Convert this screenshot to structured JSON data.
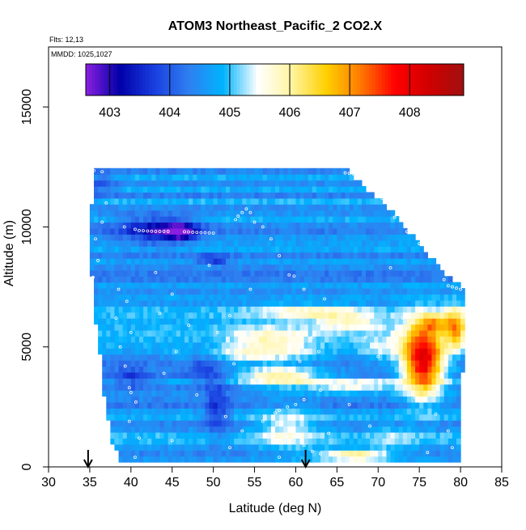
{
  "chart_data": {
    "type": "heatmap",
    "title": "ATOM3 Northeast_Pacific_2 CO2.X",
    "annotations": [
      "Flts: 12,13",
      "MMDD: 1025,1027"
    ],
    "xlabel": "Latitude (deg N)",
    "ylabel": "Altitude (m)",
    "xlim": [
      30,
      85
    ],
    "ylim": [
      0,
      17500
    ],
    "x_ticks": [
      30,
      35,
      40,
      45,
      50,
      55,
      60,
      65,
      70,
      75,
      80,
      85
    ],
    "y_ticks": [
      0,
      5000,
      10000,
      15000
    ],
    "grid": false,
    "legend": "colorbar-top",
    "colorbar": {
      "min": 402.6,
      "max": 408.9,
      "ticks": [
        403,
        404,
        405,
        406,
        407,
        408
      ],
      "colors": [
        "#8b1fe0",
        "#0000a8",
        "#1a3fe0",
        "#2f7ff0",
        "#00b4ff",
        "#ffffff",
        "#fff4a0",
        "#ffd000",
        "#ff7a00",
        "#ff0000",
        "#d00000",
        "#a01010"
      ]
    },
    "domain_envelope": {
      "lat_left": [
        [
          200,
          39
        ],
        [
          1000,
          38
        ],
        [
          2000,
          37.5
        ],
        [
          3000,
          37
        ],
        [
          4000,
          36.7
        ],
        [
          5000,
          36.4
        ],
        [
          6000,
          36
        ],
        [
          7000,
          35.7
        ],
        [
          8000,
          35.5
        ],
        [
          9000,
          35.2
        ],
        [
          10000,
          35.3
        ],
        [
          11000,
          35.5
        ],
        [
          12000,
          35.6
        ],
        [
          12400,
          35.7
        ]
      ],
      "lat_right": [
        [
          200,
          79.5
        ],
        [
          1000,
          79.6
        ],
        [
          2000,
          79.7
        ],
        [
          3000,
          79.8
        ],
        [
          4000,
          80
        ],
        [
          5000,
          80.1
        ],
        [
          6000,
          80.2
        ],
        [
          7000,
          80.2
        ],
        [
          7500,
          80
        ],
        [
          8000,
          78
        ],
        [
          9000,
          75.5
        ],
        [
          10000,
          73
        ],
        [
          11000,
          70.5
        ],
        [
          12000,
          67
        ],
        [
          12400,
          66
        ]
      ],
      "alt_min": 200,
      "alt_max": 12400
    },
    "background_value": 404.6,
    "anomalies": [
      {
        "lat": 43.5,
        "alt": 9900,
        "dlat": 4.5,
        "dalt": 550,
        "value": 403.2
      },
      {
        "lat": 46,
        "alt": 9800,
        "dlat": 1.8,
        "dalt": 300,
        "value": 402.9
      },
      {
        "lat": 50,
        "alt": 8650,
        "dlat": 2,
        "dalt": 200,
        "value": 403.6
      },
      {
        "lat": 62,
        "alt": 6450,
        "dlat": 7,
        "dalt": 300,
        "value": 405.7
      },
      {
        "lat": 66.5,
        "alt": 6000,
        "dlat": 4,
        "dalt": 350,
        "value": 405.6
      },
      {
        "lat": 57,
        "alt": 5400,
        "dlat": 5,
        "dalt": 500,
        "value": 405.7
      },
      {
        "lat": 75.5,
        "alt": 4500,
        "dlat": 2.5,
        "dalt": 1500,
        "value": 408.2
      },
      {
        "lat": 79.5,
        "alt": 5800,
        "dlat": 1.3,
        "dalt": 900,
        "value": 406.6
      },
      {
        "lat": 77,
        "alt": 6000,
        "dlat": 2,
        "dalt": 350,
        "value": 406.1
      },
      {
        "lat": 55,
        "alt": 4700,
        "dlat": 8,
        "dalt": 350,
        "value": 405.6
      },
      {
        "lat": 58,
        "alt": 3800,
        "dlat": 5,
        "dalt": 400,
        "value": 406.2
      },
      {
        "lat": 67,
        "alt": 3400,
        "dlat": 6,
        "dalt": 300,
        "value": 405.7
      },
      {
        "lat": 59,
        "alt": 1600,
        "dlat": 4,
        "dalt": 900,
        "value": 405.5
      },
      {
        "lat": 67,
        "alt": 500,
        "dlat": 4.5,
        "dalt": 250,
        "value": 406.2
      },
      {
        "lat": 50.5,
        "alt": 2500,
        "dlat": 1.5,
        "dalt": 1300,
        "value": 403.8
      },
      {
        "lat": 49,
        "alt": 4300,
        "dlat": 2,
        "dalt": 700,
        "value": 403.9
      },
      {
        "lat": 40,
        "alt": 3800,
        "dlat": 2,
        "dalt": 500,
        "value": 403.9
      },
      {
        "lat": 36,
        "alt": 11800,
        "dlat": 2,
        "dalt": 500,
        "value": 404.1
      },
      {
        "lat": 70.5,
        "alt": 5000,
        "dlat": 3,
        "dalt": 600,
        "value": 405.3
      },
      {
        "lat": 72,
        "alt": 1200,
        "dlat": 3,
        "dalt": 500,
        "value": 405.2
      }
    ],
    "sample_points": [
      [
        35.5,
        12350
      ],
      [
        36.5,
        12300
      ],
      [
        37,
        11000
      ],
      [
        36.5,
        10200
      ],
      [
        35.7,
        9500
      ],
      [
        36,
        8600
      ],
      [
        35.4,
        7900
      ],
      [
        38.5,
        7400
      ],
      [
        39.5,
        6900
      ],
      [
        38.2,
        6200
      ],
      [
        40,
        5600
      ],
      [
        38.7,
        5000
      ],
      [
        39.3,
        4200
      ],
      [
        39.8,
        3300
      ],
      [
        40.6,
        2700
      ],
      [
        39.8,
        1900
      ],
      [
        41,
        1200
      ],
      [
        40.5,
        400
      ],
      [
        39.2,
        10000
      ],
      [
        40.5,
        9900
      ],
      [
        41,
        9850
      ],
      [
        41.5,
        9840
      ],
      [
        42,
        9830
      ],
      [
        42.5,
        9820
      ],
      [
        43,
        9810
      ],
      [
        43.5,
        9810
      ],
      [
        44,
        9810
      ],
      [
        44.5,
        9810
      ],
      [
        46.5,
        9800
      ],
      [
        47,
        9790
      ],
      [
        47.5,
        9780
      ],
      [
        48,
        9770
      ],
      [
        48.5,
        9760
      ],
      [
        49,
        9760
      ],
      [
        49.5,
        9750
      ],
      [
        50,
        9740
      ],
      [
        45,
        7200
      ],
      [
        43.5,
        6400
      ],
      [
        47,
        5900
      ],
      [
        49.5,
        8400
      ],
      [
        52,
        6300
      ],
      [
        50.5,
        5600
      ],
      [
        45.5,
        4800
      ],
      [
        44,
        3900
      ],
      [
        52.5,
        4300
      ],
      [
        55,
        3500
      ],
      [
        51.5,
        2100
      ],
      [
        53.5,
        1500
      ],
      [
        56,
        1900
      ],
      [
        57.5,
        2250
      ],
      [
        58,
        2350
      ],
      [
        59,
        2500
      ],
      [
        60,
        2600
      ],
      [
        61,
        2800
      ],
      [
        52.7,
        10300
      ],
      [
        53,
        10450
      ],
      [
        53.5,
        10600
      ],
      [
        54,
        10750
      ],
      [
        54.5,
        10600
      ],
      [
        55,
        10200
      ],
      [
        56,
        10000
      ],
      [
        57,
        9500
      ],
      [
        58,
        8800
      ],
      [
        59.2,
        8000
      ],
      [
        59.8,
        7950
      ],
      [
        61,
        7400
      ],
      [
        63.5,
        7000
      ],
      [
        62,
        5400
      ],
      [
        62.8,
        4800
      ],
      [
        60.5,
        4400
      ],
      [
        61.5,
        3800
      ],
      [
        63,
        3200
      ],
      [
        61,
        900
      ],
      [
        62,
        650
      ],
      [
        63,
        550
      ],
      [
        66,
        12250
      ],
      [
        66.5,
        12230
      ],
      [
        67,
        12210
      ],
      [
        67.5,
        12200
      ],
      [
        68,
        12190
      ],
      [
        68.5,
        12180
      ],
      [
        69,
        12160
      ],
      [
        69.5,
        12000
      ],
      [
        70.5,
        11200
      ],
      [
        72,
        10400
      ],
      [
        73.5,
        9800
      ],
      [
        75,
        9300
      ],
      [
        76,
        10500
      ],
      [
        76.5,
        10450
      ],
      [
        77.5,
        8600
      ],
      [
        78,
        7800
      ],
      [
        78.5,
        7550
      ],
      [
        79,
        7500
      ],
      [
        79.5,
        7450
      ],
      [
        80,
        7400
      ],
      [
        67.5,
        6200
      ],
      [
        65.5,
        5900
      ],
      [
        68.5,
        5400
      ],
      [
        70,
        4600
      ],
      [
        71,
        3600
      ],
      [
        73,
        3900
      ],
      [
        74.5,
        2900
      ],
      [
        77,
        2200
      ],
      [
        78.5,
        1500
      ],
      [
        76,
        600
      ],
      [
        79,
        800
      ],
      [
        69,
        1700
      ],
      [
        66.5,
        2600
      ],
      [
        73,
        6200
      ],
      [
        71.5,
        8300
      ],
      [
        57,
        6600
      ],
      [
        54.5,
        7400
      ],
      [
        43,
        8100
      ],
      [
        48,
        3000
      ],
      [
        40,
        3100
      ],
      [
        45,
        1100
      ],
      [
        58,
        400
      ],
      [
        52,
        800
      ],
      [
        64,
        1400
      ]
    ],
    "arrows": [
      {
        "lat": 34.8
      },
      {
        "lat": 61.2
      }
    ]
  }
}
